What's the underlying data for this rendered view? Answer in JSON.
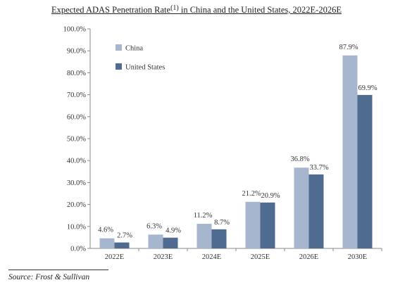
{
  "title": {
    "main": "Expected ADAS Penetration Rate",
    "footnote": "(1)",
    "rest": " in China and the United States, 2022E-2026E"
  },
  "source": "Source: Frost & Sullivan",
  "chart_data": {
    "type": "bar",
    "categories": [
      "2022E",
      "2023E",
      "2024E",
      "2025E",
      "2026E",
      "2030E"
    ],
    "series": [
      {
        "name": "China",
        "color": "#a7b6cf",
        "values": [
          4.6,
          6.3,
          11.2,
          21.2,
          36.8,
          87.9
        ],
        "labels": [
          "4.6%",
          "6.3%",
          "11.2%",
          "21.2%",
          "36.8%",
          "87.9%"
        ]
      },
      {
        "name": "United States",
        "color": "#4f6b8f",
        "values": [
          2.7,
          4.9,
          8.7,
          20.9,
          33.7,
          69.9
        ],
        "labels": [
          "2.7%",
          "4.9%",
          "8.7%",
          "20.9%",
          "33.7%",
          "69.9%"
        ]
      }
    ],
    "ylim": [
      0,
      100
    ],
    "yticks": [
      "0.0%",
      "10.0%",
      "20.0%",
      "30.0%",
      "40.0%",
      "50.0%",
      "60.0%",
      "70.0%",
      "80.0%",
      "90.0%",
      "100.0%"
    ],
    "legend": "top-left",
    "grid": false
  }
}
